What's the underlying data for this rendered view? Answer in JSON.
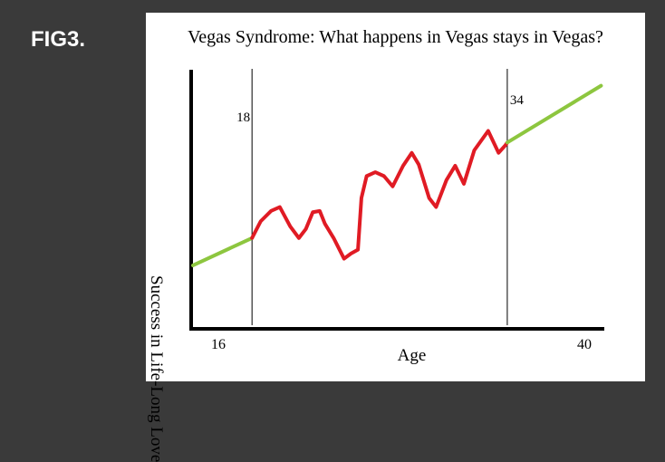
{
  "figure_label": "FIG3.",
  "chart_data": {
    "type": "line",
    "title": "Vegas Syndrome: What happens in Vegas stays in Vegas?",
    "xlabel": "Age",
    "ylabel": "Success in Life-Long Love",
    "xlim": [
      16,
      40
    ],
    "ylim": [
      0,
      100
    ],
    "x_tick_labels": [
      "16",
      "40"
    ],
    "markers": [
      {
        "label": "18",
        "x": 19.4
      },
      {
        "label": "34",
        "x": 34.1
      }
    ],
    "series": [
      {
        "color": "#8dc63f",
        "segment": "before",
        "points": [
          [
            16.0,
            17.9
          ],
          [
            19.4,
            28.5
          ]
        ]
      },
      {
        "color": "#e01b24",
        "segment": "between",
        "points": [
          [
            19.4,
            28.5
          ],
          [
            19.9,
            35.0
          ],
          [
            20.5,
            39.0
          ],
          [
            21.0,
            40.5
          ],
          [
            21.6,
            33.0
          ],
          [
            22.1,
            28.5
          ],
          [
            22.5,
            32.0
          ],
          [
            22.9,
            38.5
          ],
          [
            23.3,
            39.0
          ],
          [
            23.6,
            34.0
          ],
          [
            24.1,
            28.5
          ],
          [
            24.7,
            20.5
          ],
          [
            25.1,
            22.5
          ],
          [
            25.5,
            24.0
          ],
          [
            25.7,
            44.0
          ],
          [
            26.0,
            52.5
          ],
          [
            26.5,
            54.0
          ],
          [
            27.0,
            52.5
          ],
          [
            27.5,
            48.5
          ],
          [
            28.1,
            56.5
          ],
          [
            28.6,
            61.5
          ],
          [
            29.0,
            57.0
          ],
          [
            29.6,
            44.0
          ],
          [
            30.0,
            40.5
          ],
          [
            30.6,
            51.0
          ],
          [
            31.1,
            56.5
          ],
          [
            31.6,
            49.5
          ],
          [
            32.2,
            62.5
          ],
          [
            33.0,
            70.0
          ],
          [
            33.6,
            61.5
          ],
          [
            34.0,
            64.5
          ],
          [
            34.1,
            65.5
          ]
        ]
      },
      {
        "color": "#8dc63f",
        "segment": "after",
        "points": [
          [
            34.1,
            65.5
          ],
          [
            39.5,
            87.5
          ]
        ]
      }
    ],
    "grid": false,
    "legend": "none"
  }
}
